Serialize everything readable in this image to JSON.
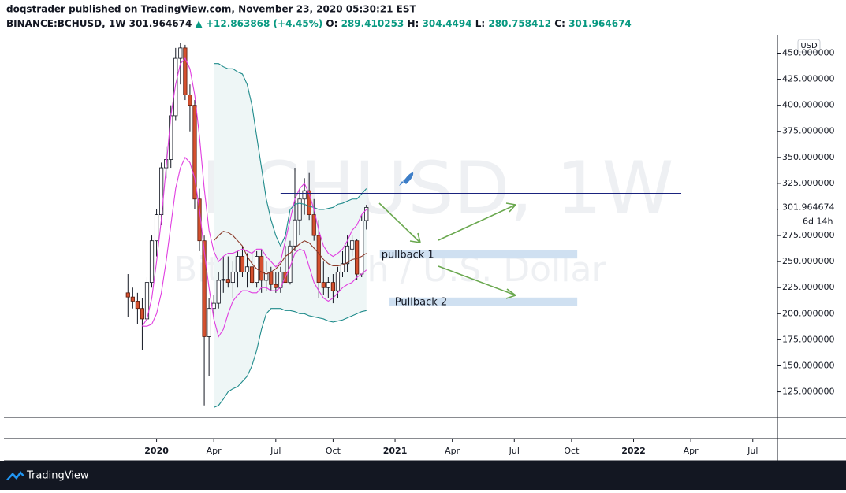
{
  "chart_data": {
    "type": "candlestick",
    "header": {
      "author": "doqstrader published on TradingView.com, November 23, 2020 05:30:21 EST",
      "symbol": "BINANCE:BCHUSD, 1W",
      "change": "▲ +12.863868 (+4.45%)",
      "o_label": "O:",
      "h_label": "H:",
      "l_label": "L:",
      "c_label": "C:"
    },
    "watermark": "BCHUSD, 1W",
    "watermark_subtitle": "Bitcoin Cash / U.S. Dollar",
    "currency": "USD",
    "countdown": "6d 14h",
    "footer": "TradingView",
    "open": [
      220,
      216,
      212,
      205,
      195,
      230,
      270,
      295,
      340,
      348,
      390,
      445,
      455,
      410,
      400,
      310,
      270,
      178,
      205,
      210,
      232,
      233,
      230,
      240,
      255,
      240,
      245,
      230,
      255,
      232,
      240,
      228,
      225,
      240,
      230,
      265,
      290,
      310,
      318,
      295,
      275,
      230,
      225,
      230,
      222,
      240,
      248,
      262,
      270,
      238,
      289.410253
    ],
    "high": [
      238,
      225,
      220,
      215,
      235,
      275,
      300,
      345,
      360,
      400,
      455,
      460,
      458,
      420,
      405,
      320,
      275,
      215,
      218,
      240,
      255,
      255,
      250,
      260,
      265,
      258,
      260,
      260,
      262,
      250,
      245,
      240,
      245,
      265,
      270,
      340,
      320,
      330,
      335,
      310,
      290,
      250,
      235,
      238,
      245,
      260,
      275,
      275,
      272,
      295,
      304.4494
    ],
    "low": [
      197,
      205,
      190,
      165,
      190,
      225,
      255,
      285,
      330,
      340,
      385,
      420,
      405,
      375,
      300,
      260,
      112,
      140,
      195,
      205,
      220,
      225,
      215,
      225,
      235,
      225,
      228,
      225,
      220,
      222,
      222,
      220,
      220,
      230,
      228,
      260,
      275,
      295,
      290,
      270,
      215,
      218,
      215,
      210,
      215,
      235,
      240,
      255,
      232,
      235,
      280.758412
    ],
    "close": [
      216,
      212,
      205,
      195,
      230,
      270,
      295,
      340,
      348,
      390,
      445,
      455,
      410,
      400,
      310,
      270,
      178,
      205,
      210,
      232,
      233,
      230,
      240,
      255,
      240,
      245,
      230,
      255,
      232,
      240,
      228,
      225,
      240,
      230,
      265,
      290,
      310,
      318,
      295,
      275,
      230,
      225,
      230,
      222,
      240,
      248,
      265,
      270,
      238,
      289,
      301.964674
    ],
    "up_color": "#ffffff",
    "down_color": "#d4502e",
    "series": [
      {
        "color": "#1f8b8b",
        "values": [
          null,
          null,
          null,
          null,
          null,
          null,
          null,
          null,
          null,
          null,
          null,
          null,
          null,
          null,
          null,
          null,
          null,
          null,
          440,
          440,
          437,
          435,
          435,
          432,
          430,
          420,
          400,
          370,
          340,
          310,
          290,
          275,
          265,
          275,
          300,
          305,
          306,
          305,
          303,
          302,
          300,
          300,
          301,
          302,
          305,
          306,
          308,
          310,
          310,
          315,
          320
        ]
      },
      {
        "color": "#1f8b8b",
        "values": [
          null,
          null,
          null,
          null,
          null,
          null,
          null,
          null,
          null,
          null,
          null,
          null,
          null,
          null,
          null,
          null,
          null,
          null,
          110,
          112,
          118,
          125,
          128,
          130,
          135,
          140,
          150,
          165,
          185,
          200,
          205,
          205,
          205,
          203,
          203,
          202,
          200,
          200,
          198,
          197,
          196,
          195,
          193,
          192,
          193,
          194,
          196,
          198,
          200,
          202,
          203
        ]
      },
      {
        "color": "#8b3a2a",
        "values": [
          null,
          null,
          null,
          null,
          null,
          null,
          null,
          null,
          null,
          null,
          null,
          null,
          null,
          null,
          null,
          null,
          null,
          null,
          270,
          275,
          279,
          278,
          275,
          270,
          265,
          255,
          248,
          243,
          240,
          238,
          240,
          243,
          248,
          255,
          258,
          263,
          267,
          270,
          268,
          263,
          258,
          252,
          248,
          246,
          246,
          247,
          249,
          252,
          253,
          255,
          258
        ]
      },
      {
        "color": "#e03ee0",
        "values": [
          null,
          null,
          null,
          188,
          195,
          215,
          250,
          290,
          340,
          390,
          420,
          440,
          445,
          435,
          410,
          370,
          320,
          280,
          260,
          250,
          255,
          258,
          258,
          260,
          262,
          260,
          258,
          262,
          262,
          255,
          250,
          245,
          250,
          270,
          290,
          310,
          320,
          325,
          315,
          300,
          280,
          265,
          258,
          255,
          258,
          262,
          270,
          280,
          285,
          295,
          300
        ]
      },
      {
        "color": "#e03ee0",
        "values": [
          null,
          null,
          null,
          188,
          188,
          190,
          200,
          220,
          250,
          285,
          320,
          340,
          350,
          345,
          330,
          300,
          260,
          225,
          195,
          178,
          185,
          200,
          212,
          218,
          222,
          222,
          220,
          220,
          225,
          225,
          222,
          222,
          225,
          235,
          245,
          258,
          262,
          260,
          245,
          230,
          222,
          215,
          212,
          215,
          220,
          225,
          228,
          230,
          235,
          238,
          242
        ]
      }
    ],
    "band_fill": "#eef6f6",
    "xlim": [
      -26,
      136
    ],
    "xticks": [
      {
        "value": 6,
        "label": "2020"
      },
      {
        "value": 18,
        "label": "Apr"
      },
      {
        "value": 31,
        "label": "Jul"
      },
      {
        "value": 43,
        "label": "Oct"
      },
      {
        "value": 56,
        "label": "2021"
      },
      {
        "value": 68,
        "label": "Apr"
      },
      {
        "value": 81,
        "label": "Jul"
      },
      {
        "value": 93,
        "label": "Oct"
      },
      {
        "value": 106,
        "label": "2022"
      },
      {
        "value": 118,
        "label": "Apr"
      },
      {
        "value": 131,
        "label": "Jul"
      }
    ],
    "ylim": [
      102,
      467
    ],
    "yticks": [
      {
        "value": 125,
        "label": "125.000000"
      },
      {
        "value": 150,
        "label": "150.000000"
      },
      {
        "value": 175,
        "label": "175.000000"
      },
      {
        "value": 200,
        "label": "200.000000"
      },
      {
        "value": 225,
        "label": "225.000000"
      },
      {
        "value": 250,
        "label": "250.000000"
      },
      {
        "value": 275,
        "label": "275.000000"
      },
      {
        "value": 300,
        "label": "300.000000"
      },
      {
        "value": 325,
        "label": "325.000000"
      },
      {
        "value": 350,
        "label": "350.000000"
      },
      {
        "value": 375,
        "label": "375.000000"
      },
      {
        "value": 400,
        "label": "400.000000"
      },
      {
        "value": 425,
        "label": "425.000000"
      },
      {
        "value": 450,
        "label": "450.000000"
      }
    ],
    "hline": {
      "value": 315.5,
      "x_range": [
        32,
        116
      ],
      "color": "#1a237e"
    },
    "zones": [
      {
        "label": "pullback 1",
        "x_range": [
          52.8,
          94.2
        ],
        "y_range": [
          253,
          261
        ]
      },
      {
        "label": "Pullback 2",
        "x_range": [
          54.8,
          94.2
        ],
        "y_range": [
          207.5,
          215.5
        ]
      }
    ]
  }
}
